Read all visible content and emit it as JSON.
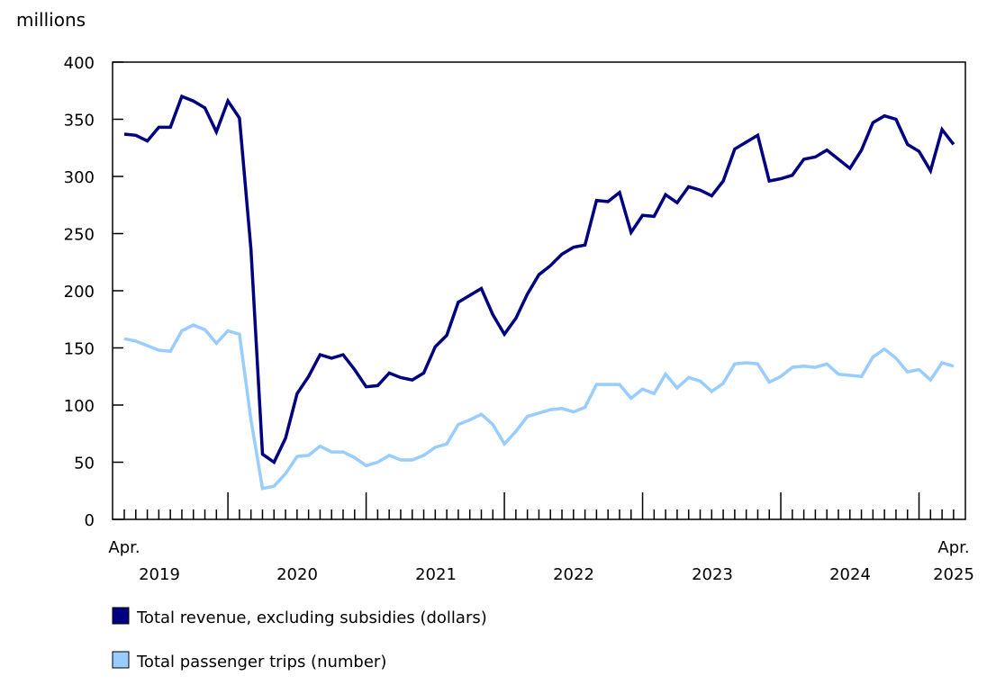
{
  "chart_data": {
    "type": "line",
    "ylabel": "millions",
    "ylim": [
      0,
      400
    ],
    "yticks": [
      "0",
      "50",
      "100",
      "150",
      "200",
      "250",
      "300",
      "350",
      "400"
    ],
    "grid": false,
    "legend_position": "bottom-left",
    "x_labels": {
      "start_month": "Apr.",
      "start_year": "2019",
      "years": [
        "2020",
        "2021",
        "2022",
        "2023",
        "2024"
      ],
      "end_month": "Apr.",
      "end_year": "2025"
    },
    "x": [
      "2019-04",
      "2019-05",
      "2019-06",
      "2019-07",
      "2019-08",
      "2019-09",
      "2019-10",
      "2019-11",
      "2019-12",
      "2020-01",
      "2020-02",
      "2020-03",
      "2020-04",
      "2020-05",
      "2020-06",
      "2020-07",
      "2020-08",
      "2020-09",
      "2020-10",
      "2020-11",
      "2020-12",
      "2021-01",
      "2021-02",
      "2021-03",
      "2021-04",
      "2021-05",
      "2021-06",
      "2021-07",
      "2021-08",
      "2021-09",
      "2021-10",
      "2021-11",
      "2021-12",
      "2022-01",
      "2022-02",
      "2022-03",
      "2022-04",
      "2022-05",
      "2022-06",
      "2022-07",
      "2022-08",
      "2022-09",
      "2022-10",
      "2022-11",
      "2022-12",
      "2023-01",
      "2023-02",
      "2023-03",
      "2023-04",
      "2023-05",
      "2023-06",
      "2023-07",
      "2023-08",
      "2023-09",
      "2023-10",
      "2023-11",
      "2023-12",
      "2024-01",
      "2024-02",
      "2024-03",
      "2024-04",
      "2024-05",
      "2024-06",
      "2024-07",
      "2024-08",
      "2024-09",
      "2024-10",
      "2024-11",
      "2024-12",
      "2025-01",
      "2025-02",
      "2025-03",
      "2025-04"
    ],
    "series": [
      {
        "name": "Total revenue, excluding subsidies (dollars)",
        "color": "#000080",
        "values": [
          337,
          336,
          331,
          343,
          343,
          370,
          366,
          360,
          339,
          366,
          351,
          236,
          57,
          50,
          71,
          110,
          125,
          144,
          141,
          144,
          131,
          116,
          117,
          128,
          124,
          122,
          128,
          151,
          161,
          190,
          196,
          202,
          179,
          162,
          176,
          197,
          214,
          222,
          232,
          238,
          240,
          279,
          278,
          286,
          251,
          266,
          265,
          284,
          277,
          291,
          288,
          283,
          296,
          324,
          330,
          336,
          296,
          298,
          301,
          315,
          317,
          323,
          315,
          307,
          323,
          347,
          353,
          350,
          328,
          322,
          305,
          341,
          328
        ]
      },
      {
        "name": "Total passenger trips (number)",
        "color": "#99ccff",
        "values": [
          158,
          156,
          152,
          148,
          147,
          165,
          170,
          166,
          154,
          165,
          162,
          87,
          27,
          29,
          40,
          55,
          56,
          64,
          59,
          59,
          54,
          47,
          50,
          56,
          52,
          52,
          56,
          63,
          66,
          83,
          87,
          92,
          83,
          66,
          77,
          90,
          93,
          96,
          97,
          94,
          98,
          118,
          118,
          118,
          106,
          114,
          110,
          127,
          115,
          124,
          121,
          112,
          119,
          136,
          137,
          136,
          120,
          125,
          133,
          134,
          133,
          136,
          127,
          126,
          125,
          142,
          149,
          141,
          129,
          131,
          122,
          137,
          134
        ]
      }
    ]
  }
}
